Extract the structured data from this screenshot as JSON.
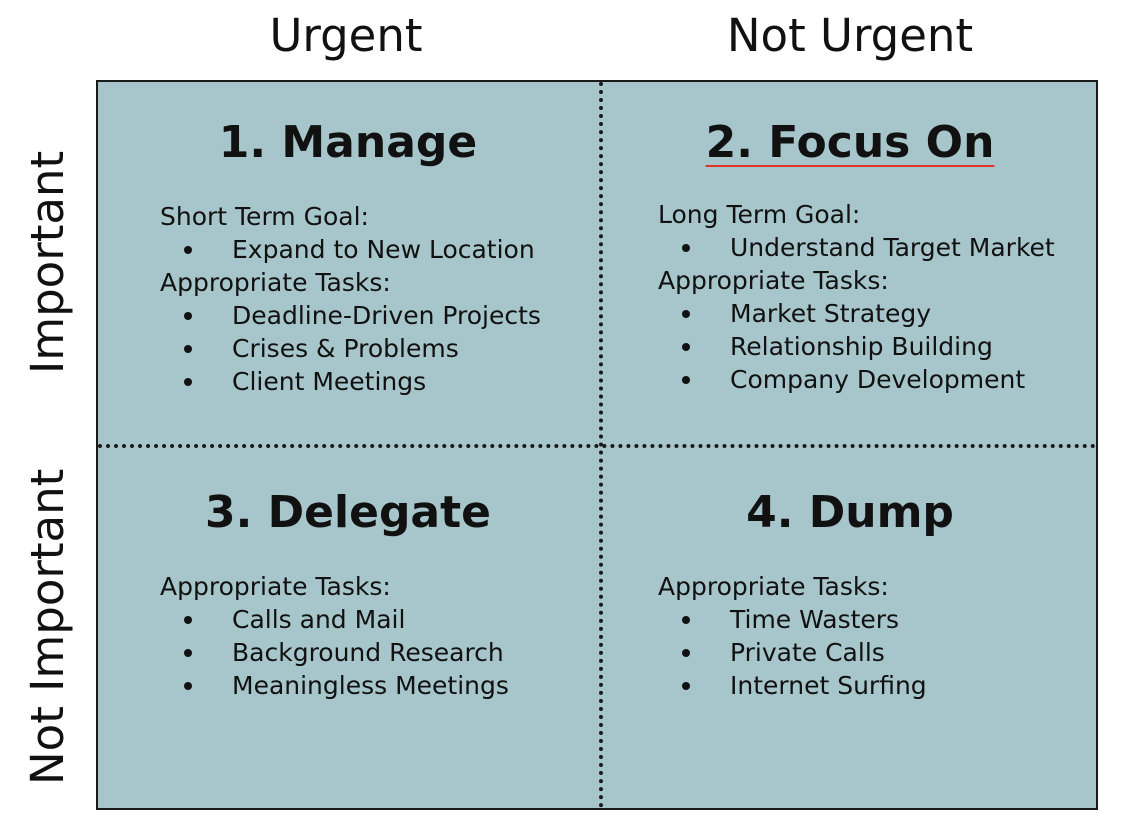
{
  "columns": {
    "urgent": "Urgent",
    "not_urgent": "Not Urgent"
  },
  "rows": {
    "important": "Important",
    "not_important": "Not Important"
  },
  "colors": {
    "quadrant_fill": "#a7c6cb",
    "border": "#1a1a1a",
    "spellcheck_underline": "#e0352b"
  },
  "quadrants": {
    "manage": {
      "title": "1. Manage",
      "goal_label": "Short Term Goal:",
      "goals": [
        "Expand to New Location"
      ],
      "tasks_label": "Appropriate Tasks:",
      "tasks": [
        "Deadline-Driven Projects",
        "Crises & Problems",
        "Client Meetings"
      ]
    },
    "focus": {
      "title": "2. Focus On",
      "goal_label": "Long Term Goal:",
      "goals": [
        "Understand Target Market"
      ],
      "tasks_label": "Appropriate Tasks:",
      "tasks": [
        "Market Strategy",
        "Relationship Building",
        "Company Development"
      ]
    },
    "delegate": {
      "title": "3. Delegate",
      "tasks_label": "Appropriate Tasks:",
      "tasks": [
        "Calls and Mail",
        "Background Research",
        "Meaningless Meetings"
      ]
    },
    "dump": {
      "title": "4. Dump",
      "tasks_label": "Appropriate Tasks:",
      "tasks": [
        "Time Wasters",
        "Private Calls",
        "Internet Surfing"
      ]
    }
  }
}
